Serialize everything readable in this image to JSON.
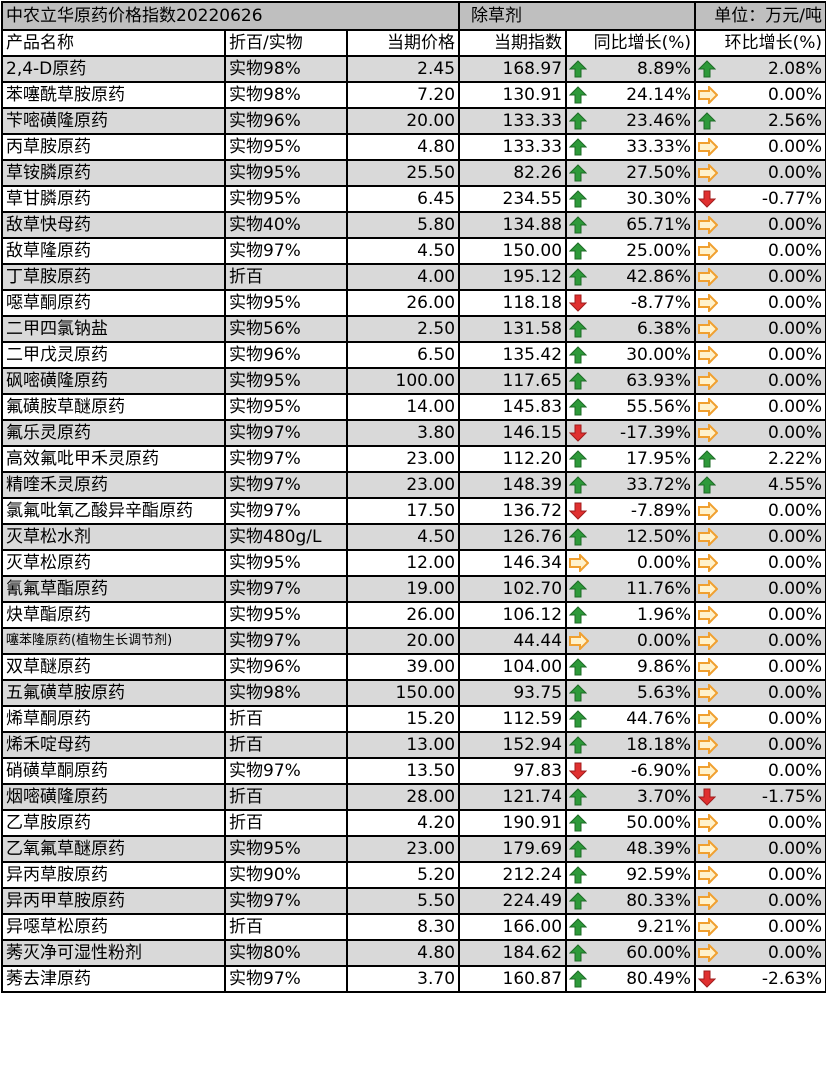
{
  "title": {
    "name": "中农立华原药价格指数20220626",
    "category": "除草剂",
    "unit": "单位：万元/吨"
  },
  "headers": [
    "产品名称",
    "折百/实物",
    "当期价格",
    "当期指数",
    "同比增长(%)",
    "环比增长(%)"
  ],
  "colors": {
    "up": "#2e9a3a",
    "flat": "#f0a030",
    "down": "#e03030",
    "row_alt": "#d9d9d9",
    "title_bg": "#bfbfbf"
  },
  "rows": [
    [
      "2,4-D原药",
      "实物98%",
      "2.45",
      "168.97",
      "8.89%",
      "up",
      "2.08%",
      "up"
    ],
    [
      "苯噻酰草胺原药",
      "实物98%",
      "7.20",
      "130.91",
      "24.14%",
      "up",
      "0.00%",
      "flat"
    ],
    [
      "苄嘧磺隆原药",
      "实物96%",
      "20.00",
      "133.33",
      "23.46%",
      "up",
      "2.56%",
      "up"
    ],
    [
      "丙草胺原药",
      "实物95%",
      "4.80",
      "133.33",
      "33.33%",
      "up",
      "0.00%",
      "flat"
    ],
    [
      "草铵膦原药",
      "实物95%",
      "25.50",
      "82.26",
      "27.50%",
      "up",
      "0.00%",
      "flat"
    ],
    [
      "草甘膦原药",
      "实物95%",
      "6.45",
      "234.55",
      "30.30%",
      "up",
      "-0.77%",
      "down"
    ],
    [
      "敌草快母药",
      "实物40%",
      "5.80",
      "134.88",
      "65.71%",
      "up",
      "0.00%",
      "flat"
    ],
    [
      "敌草隆原药",
      "实物97%",
      "4.50",
      "150.00",
      "25.00%",
      "up",
      "0.00%",
      "flat"
    ],
    [
      "丁草胺原药",
      "折百",
      "4.00",
      "195.12",
      "42.86%",
      "up",
      "0.00%",
      "flat"
    ],
    [
      "噁草酮原药",
      "实物95%",
      "26.00",
      "118.18",
      "-8.77%",
      "down",
      "0.00%",
      "flat"
    ],
    [
      "二甲四氯钠盐",
      "实物56%",
      "2.50",
      "131.58",
      "6.38%",
      "up",
      "0.00%",
      "flat"
    ],
    [
      "二甲戊灵原药",
      "实物96%",
      "6.50",
      "135.42",
      "30.00%",
      "up",
      "0.00%",
      "flat"
    ],
    [
      "砜嘧磺隆原药",
      "实物95%",
      "100.00",
      "117.65",
      "63.93%",
      "up",
      "0.00%",
      "flat"
    ],
    [
      "氟磺胺草醚原药",
      "实物95%",
      "14.00",
      "145.83",
      "55.56%",
      "up",
      "0.00%",
      "flat"
    ],
    [
      "氟乐灵原药",
      "实物97%",
      "3.80",
      "146.15",
      "-17.39%",
      "down",
      "0.00%",
      "flat"
    ],
    [
      "高效氟吡甲禾灵原药",
      "实物97%",
      "23.00",
      "112.20",
      "17.95%",
      "up",
      "2.22%",
      "up"
    ],
    [
      "精喹禾灵原药",
      "实物97%",
      "23.00",
      "148.39",
      "33.72%",
      "up",
      "4.55%",
      "up"
    ],
    [
      "氯氟吡氧乙酸异辛酯原药",
      "实物97%",
      "17.50",
      "136.72",
      "-7.89%",
      "down",
      "0.00%",
      "flat"
    ],
    [
      "灭草松水剂",
      "实物480g/L",
      "4.50",
      "126.76",
      "12.50%",
      "up",
      "0.00%",
      "flat"
    ],
    [
      "灭草松原药",
      "实物95%",
      "12.00",
      "146.34",
      "0.00%",
      "flat",
      "0.00%",
      "flat"
    ],
    [
      "氰氟草酯原药",
      "实物97%",
      "19.00",
      "102.70",
      "11.76%",
      "up",
      "0.00%",
      "flat"
    ],
    [
      "炔草酯原药",
      "实物95%",
      "26.00",
      "106.12",
      "1.96%",
      "up",
      "0.00%",
      "flat"
    ],
    [
      "噻苯隆原药(植物生长调节剂)",
      "实物97%",
      "20.00",
      "44.44",
      "0.00%",
      "flat",
      "0.00%",
      "flat"
    ],
    [
      "双草醚原药",
      "实物96%",
      "39.00",
      "104.00",
      "9.86%",
      "up",
      "0.00%",
      "flat"
    ],
    [
      "五氟磺草胺原药",
      "实物98%",
      "150.00",
      "93.75",
      "5.63%",
      "up",
      "0.00%",
      "flat"
    ],
    [
      "烯草酮原药",
      "折百",
      "15.20",
      "112.59",
      "44.76%",
      "up",
      "0.00%",
      "flat"
    ],
    [
      "烯禾啶母药",
      "折百",
      "13.00",
      "152.94",
      "18.18%",
      "up",
      "0.00%",
      "flat"
    ],
    [
      "硝磺草酮原药",
      "实物97%",
      "13.50",
      "97.83",
      "-6.90%",
      "down",
      "0.00%",
      "flat"
    ],
    [
      "烟嘧磺隆原药",
      "折百",
      "28.00",
      "121.74",
      "3.70%",
      "up",
      "-1.75%",
      "down"
    ],
    [
      "乙草胺原药",
      "折百",
      "4.20",
      "190.91",
      "50.00%",
      "up",
      "0.00%",
      "flat"
    ],
    [
      "乙氧氟草醚原药",
      "实物95%",
      "23.00",
      "179.69",
      "48.39%",
      "up",
      "0.00%",
      "flat"
    ],
    [
      "异丙草胺原药",
      "实物90%",
      "5.20",
      "212.24",
      "92.59%",
      "up",
      "0.00%",
      "flat"
    ],
    [
      "异丙甲草胺原药",
      "实物97%",
      "5.50",
      "224.49",
      "80.33%",
      "up",
      "0.00%",
      "flat"
    ],
    [
      "异噁草松原药",
      "折百",
      "8.30",
      "166.00",
      "9.21%",
      "up",
      "0.00%",
      "flat"
    ],
    [
      "莠灭净可湿性粉剂",
      "实物80%",
      "4.80",
      "184.62",
      "60.00%",
      "up",
      "0.00%",
      "flat"
    ],
    [
      "莠去津原药",
      "实物97%",
      "3.70",
      "160.87",
      "80.49%",
      "up",
      "-2.63%",
      "down"
    ]
  ]
}
